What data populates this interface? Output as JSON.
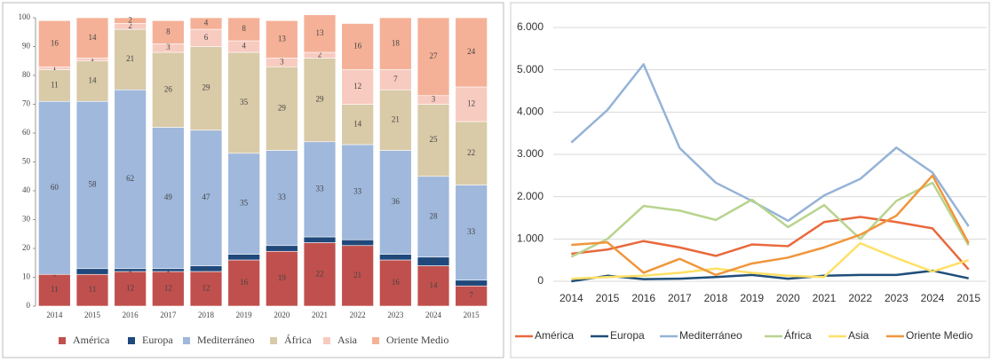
{
  "chart_data": [
    {
      "type": "stacked-bar",
      "categories": [
        "2014",
        "2015",
        "2016",
        "2017",
        "2018",
        "2019",
        "2020",
        "2021",
        "2022",
        "2023",
        "2024",
        "2015"
      ],
      "ylim": [
        0,
        100
      ],
      "yticks": [
        0,
        10,
        20,
        30,
        40,
        50,
        60,
        70,
        80,
        90,
        100
      ],
      "grid": false,
      "legend": "bottom",
      "series": [
        {
          "name": "América",
          "color": "#c0504d",
          "values": [
            11,
            11,
            12,
            12,
            12,
            16,
            19,
            22,
            21,
            16,
            14,
            7
          ]
        },
        {
          "name": "Europa",
          "color": "#1f497d",
          "values": [
            0,
            2,
            1,
            1,
            2,
            2,
            2,
            2,
            2,
            2,
            3,
            2
          ]
        },
        {
          "name": "Mediterráneo",
          "color": "#9fb8dc",
          "values": [
            60,
            58,
            62,
            49,
            47,
            35,
            33,
            33,
            33,
            36,
            28,
            33
          ]
        },
        {
          "name": "África",
          "color": "#d9caa8",
          "values": [
            11,
            14,
            21,
            26,
            29,
            35,
            29,
            29,
            14,
            21,
            25,
            22
          ]
        },
        {
          "name": "Asia",
          "color": "#f8cbc0",
          "values": [
            1,
            1,
            2,
            3,
            6,
            4,
            3,
            2,
            12,
            7,
            3,
            12
          ]
        },
        {
          "name": "Oriente Medio",
          "color": "#f4b197",
          "values": [
            16,
            14,
            2,
            8,
            4,
            8,
            13,
            13,
            16,
            18,
            27,
            24
          ]
        }
      ]
    },
    {
      "type": "line",
      "categories": [
        "2014",
        "2015",
        "2016",
        "2017",
        "2018",
        "2019",
        "2020",
        "2021",
        "2022",
        "2023",
        "2024",
        "2015"
      ],
      "ylim": [
        0,
        6000
      ],
      "yticks": [
        0,
        {
          "value": 1000,
          "label": "1.000"
        },
        {
          "value": 2000,
          "label": "2.000"
        },
        {
          "value": 3000,
          "label": "3.000"
        },
        {
          "value": 4000,
          "label": "4.000"
        },
        {
          "value": 5000,
          "label": "5.000"
        },
        {
          "value": 6000,
          "label": "6.000"
        }
      ],
      "grid": true,
      "legend": "bottom",
      "series": [
        {
          "name": "América",
          "color": "#e8693c",
          "values": [
            650,
            750,
            950,
            800,
            600,
            870,
            830,
            1400,
            1520,
            1400,
            1250,
            280
          ]
        },
        {
          "name": "Europa",
          "color": "#1f4e79",
          "values": [
            0,
            130,
            50,
            60,
            100,
            150,
            60,
            130,
            150,
            150,
            250,
            70
          ]
        },
        {
          "name": "Mediterráneo",
          "color": "#95b3d7",
          "values": [
            3280,
            4050,
            5130,
            3150,
            2330,
            1900,
            1430,
            2030,
            2420,
            3160,
            2570,
            1300
          ]
        },
        {
          "name": "África",
          "color": "#b8d48e",
          "values": [
            580,
            1000,
            1780,
            1670,
            1450,
            1930,
            1280,
            1800,
            1000,
            1900,
            2330,
            850
          ]
        },
        {
          "name": "Asia",
          "color": "#ffe066",
          "values": [
            60,
            100,
            130,
            200,
            300,
            200,
            130,
            100,
            900,
            550,
            230,
            500
          ]
        },
        {
          "name": "Oriente Medio",
          "color": "#f0963c",
          "values": [
            860,
            920,
            200,
            530,
            150,
            420,
            560,
            800,
            1100,
            1550,
            2500,
            900
          ]
        }
      ]
    }
  ]
}
